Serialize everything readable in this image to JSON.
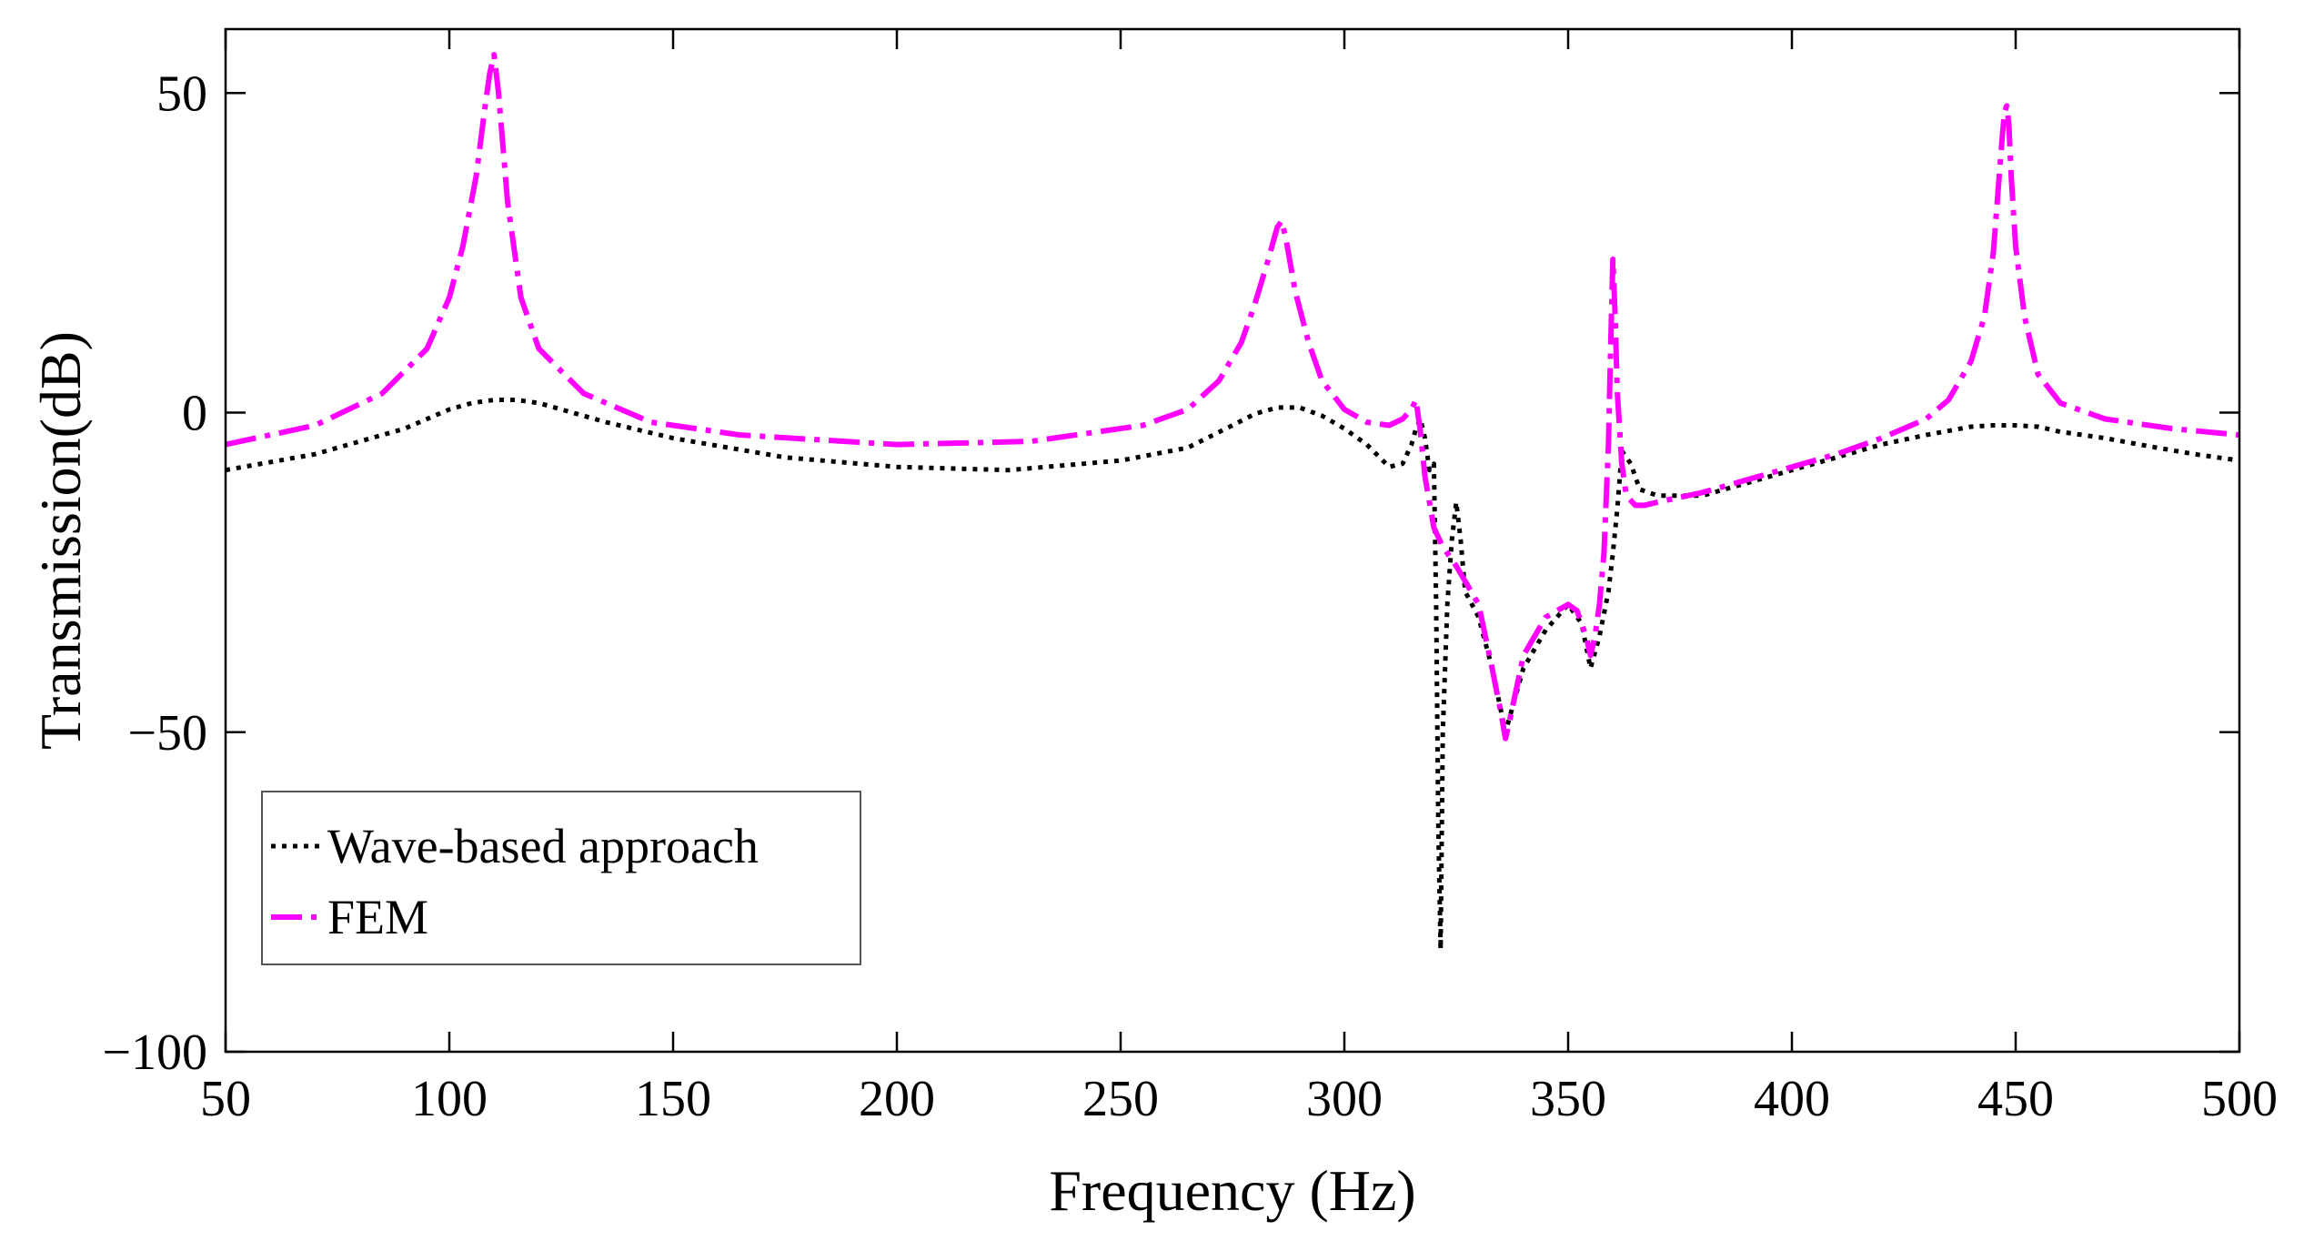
{
  "chart_data": {
    "type": "line",
    "title": "",
    "xlabel": "Frequency (Hz)",
    "ylabel": "Transmission(dB)",
    "xlim": [
      50,
      500
    ],
    "ylim": [
      -100,
      60
    ],
    "xticks": [
      50,
      100,
      150,
      200,
      250,
      300,
      350,
      400,
      450,
      500
    ],
    "xtick_labels": [
      "50",
      "100",
      "150",
      "200",
      "250",
      "300",
      "350",
      "400",
      "450",
      "500"
    ],
    "yticks": [
      -100,
      -50,
      0,
      50
    ],
    "ytick_labels": [
      "−100",
      "−50",
      "0",
      "50"
    ],
    "grid": false,
    "legend_position": "bottom-left",
    "series": [
      {
        "name": "Wave-based approach",
        "color": "#000000",
        "style": "dotted",
        "x": [
          50,
          70,
          90,
          100,
          105,
          110,
          115,
          120,
          135,
          150,
          175,
          200,
          225,
          250,
          265,
          275,
          280,
          285,
          290,
          295,
          300,
          305,
          310,
          313,
          315,
          316,
          317,
          318,
          319,
          320,
          320.5,
          321,
          321.5,
          322,
          323,
          324,
          325,
          326,
          327,
          330,
          333,
          336,
          340,
          345,
          350,
          353,
          355,
          357,
          359,
          360,
          361,
          362,
          364,
          366,
          370,
          380,
          390,
          400,
          410,
          420,
          430,
          440,
          445,
          450,
          455,
          460,
          470,
          480,
          490,
          500
        ],
        "values": [
          -9,
          -6.5,
          -2.5,
          0.5,
          1.5,
          2,
          2,
          1.5,
          -1.5,
          -4,
          -7,
          -8.5,
          -9,
          -7.5,
          -5.5,
          -2,
          -0.2,
          0.8,
          0.8,
          -0.5,
          -2.5,
          -5,
          -8.5,
          -8,
          -5,
          -2.5,
          -1,
          -4,
          -9,
          -8,
          -30,
          -65,
          -84,
          -50,
          -30,
          -20,
          -14,
          -20,
          -28,
          -32,
          -40,
          -50,
          -40,
          -34,
          -30,
          -33,
          -40,
          -35,
          -28,
          -22,
          -15,
          -6,
          -8,
          -12,
          -13,
          -13,
          -11,
          -9,
          -7,
          -5,
          -3.5,
          -2.2,
          -2,
          -2,
          -2.2,
          -3,
          -4,
          -5.3,
          -6.5,
          -7.5
        ]
      },
      {
        "name": "FEM",
        "color": "#ff00ff",
        "style": "dashdot",
        "x": [
          50,
          70,
          85,
          95,
          100,
          103,
          106,
          108,
          109,
          110,
          111,
          113,
          116,
          120,
          130,
          145,
          165,
          200,
          230,
          255,
          265,
          272,
          277,
          280,
          283,
          285,
          286,
          287,
          289,
          292,
          295,
          300,
          305,
          310,
          313,
          315,
          316,
          317,
          318,
          320,
          322,
          325,
          330,
          333,
          335,
          336,
          337,
          340,
          345,
          350,
          352,
          354,
          355,
          356,
          357,
          358,
          359,
          359.5,
          360,
          360.5,
          361,
          362,
          363,
          365,
          367,
          370,
          380,
          390,
          400,
          410,
          420,
          430,
          435,
          440,
          443,
          445,
          446,
          447,
          447.5,
          448,
          448.5,
          449,
          450,
          452,
          455,
          460,
          470,
          485,
          500
        ],
        "values": [
          -5,
          -2,
          3,
          10,
          18,
          26,
          37,
          48,
          53,
          56,
          50,
          33,
          18,
          10,
          3,
          -1.5,
          -3.5,
          -5,
          -4.5,
          -2,
          0.5,
          5,
          11,
          17,
          24,
          29,
          30,
          27,
          19,
          11,
          5,
          0.5,
          -1.5,
          -2,
          -1,
          0.5,
          2,
          -3,
          -10,
          -18,
          -21,
          -24,
          -30,
          -40,
          -47,
          -51,
          -48,
          -38,
          -32,
          -30,
          -31,
          -35,
          -38,
          -35,
          -30,
          -22,
          -5,
          10,
          24,
          15,
          3,
          -8,
          -13,
          -14.5,
          -14.5,
          -14,
          -12.5,
          -10.5,
          -8.5,
          -6.5,
          -4,
          -1,
          2,
          8,
          15,
          25,
          34,
          43,
          47,
          48,
          45,
          37,
          26,
          15,
          6,
          1.5,
          -1,
          -2.5,
          -3.5
        ]
      }
    ]
  }
}
